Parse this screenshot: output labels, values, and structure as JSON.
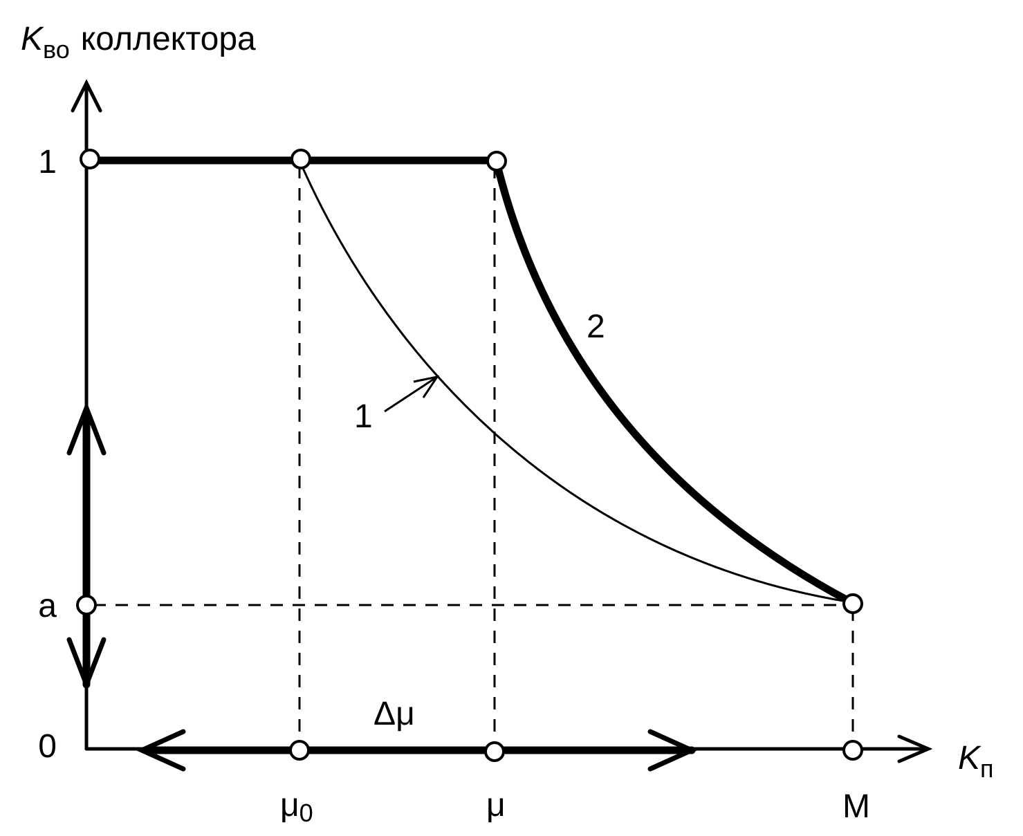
{
  "axes": {
    "y_label": {
      "symbol": "K",
      "subscript": "во",
      "text": "коллектора"
    },
    "x_label": {
      "symbol": "K",
      "subscript": "п"
    },
    "y_ticks": [
      "1",
      "a",
      "0"
    ],
    "x_ticks": [
      {
        "symbol": "μ",
        "subscript": "0"
      },
      {
        "symbol": "μ"
      },
      {
        "symbol": "M"
      }
    ]
  },
  "curves": [
    {
      "label": "1"
    },
    {
      "label": "2"
    }
  ],
  "interval_label": "Δμ"
}
